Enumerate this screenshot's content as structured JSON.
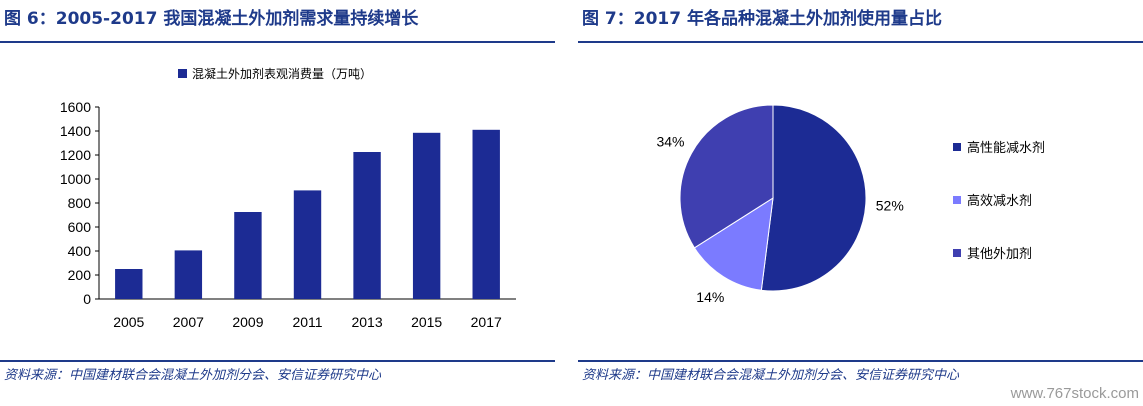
{
  "left": {
    "title": "图 6：2005-2017 我国混凝土外加剂需求量持续增长",
    "source": "资料来源：中国建材联合会混凝土外加剂分会、安信证券研究中心"
  },
  "right": {
    "title": "图 7：2017 年各品种混凝土外加剂使用量占比",
    "source": "资料来源：中国建材联合会混凝土外加剂分会、安信证券研究中心"
  },
  "watermark": "www.767stock.com",
  "chart_data": [
    {
      "type": "bar",
      "categories": [
        "2005",
        "2007",
        "2009",
        "2011",
        "2013",
        "2015",
        "2017"
      ],
      "series": [
        {
          "name": "混凝土外加剂表观消费量（万吨）",
          "values": [
            250,
            405,
            725,
            905,
            1225,
            1385,
            1410
          ],
          "color": "#1c2b94"
        }
      ],
      "yticks": [
        "0",
        "200",
        "400",
        "600",
        "800",
        "1000",
        "1200",
        "1400",
        "1600"
      ],
      "ylim": [
        0,
        1600
      ],
      "legend": "top"
    },
    {
      "type": "pie",
      "labels": [
        "高性能减水剂",
        "高效减水剂",
        "其他外加剂"
      ],
      "values": [
        52,
        14,
        34
      ],
      "value_labels": [
        "52%",
        "14%",
        "34%"
      ],
      "colors": [
        "#1c2b94",
        "#7b7bff",
        "#3f3fb0"
      ],
      "legend": "right"
    }
  ]
}
